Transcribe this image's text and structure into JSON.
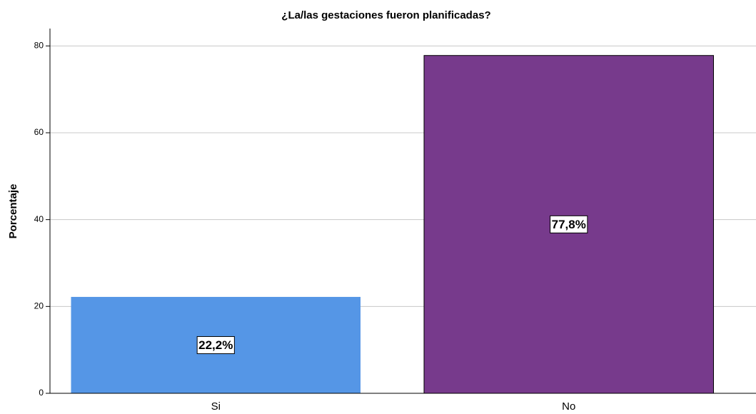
{
  "chart_data": {
    "type": "bar",
    "title": "¿La/las gestaciones fueron planificadas?",
    "y_label": "Porcentaje",
    "categories": [
      "Si",
      "No"
    ],
    "values": [
      22.2,
      77.8
    ],
    "value_labels": [
      "22,2%",
      "77,8%"
    ],
    "colors": [
      "#5596e6",
      "#773a8c"
    ],
    "ylim": [
      0,
      84
    ],
    "yticks": [
      0,
      20,
      40,
      60,
      80
    ],
    "grid": true
  }
}
